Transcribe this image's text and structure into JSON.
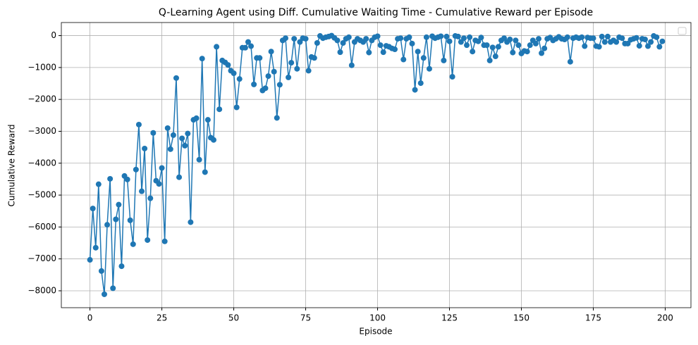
{
  "chart_data": {
    "type": "line",
    "title": "Q-Learning Agent using Diff. Cumulative Waiting Time - Cumulative Reward per Episode",
    "x_label": "Episode",
    "y_label": "Cumulative Reward",
    "x": [
      0,
      1,
      2,
      3,
      4,
      5,
      6,
      7,
      8,
      9,
      10,
      11,
      12,
      13,
      14,
      15,
      16,
      17,
      18,
      19,
      20,
      21,
      22,
      23,
      24,
      25,
      26,
      27,
      28,
      29,
      30,
      31,
      32,
      33,
      34,
      35,
      36,
      37,
      38,
      39,
      40,
      41,
      42,
      43,
      44,
      45,
      46,
      47,
      48,
      49,
      50,
      51,
      52,
      53,
      54,
      55,
      56,
      57,
      58,
      59,
      60,
      61,
      62,
      63,
      64,
      65,
      66,
      67,
      68,
      69,
      70,
      71,
      72,
      73,
      74,
      75,
      76,
      77,
      78,
      79,
      80,
      81,
      82,
      83,
      84,
      85,
      86,
      87,
      88,
      89,
      90,
      91,
      92,
      93,
      94,
      95,
      96,
      97,
      98,
      99,
      100,
      101,
      102,
      103,
      104,
      105,
      106,
      107,
      108,
      109,
      110,
      111,
      112,
      113,
      114,
      115,
      116,
      117,
      118,
      119,
      120,
      121,
      122,
      123,
      124,
      125,
      126,
      127,
      128,
      129,
      130,
      131,
      132,
      133,
      134,
      135,
      136,
      137,
      138,
      139,
      140,
      141,
      142,
      143,
      144,
      145,
      146,
      147,
      148,
      149,
      150,
      151,
      152,
      153,
      154,
      155,
      156,
      157,
      158,
      159,
      160,
      161,
      162,
      163,
      164,
      165,
      166,
      167,
      168,
      169,
      170,
      171,
      172,
      173,
      174,
      175,
      176,
      177,
      178,
      179,
      180,
      181,
      182,
      183,
      184,
      185,
      186,
      187,
      188,
      189,
      190,
      191,
      192,
      193,
      194,
      195,
      196,
      197,
      198,
      199
    ],
    "series": [
      {
        "color": "#1f77b4",
        "values": [
          -7030,
          -5420,
          -6650,
          -4660,
          -7380,
          -8110,
          -5930,
          -4490,
          -7920,
          -5760,
          -5300,
          -7230,
          -4400,
          -4510,
          -5790,
          -6540,
          -4200,
          -2790,
          -4880,
          -3540,
          -6410,
          -5100,
          -3050,
          -4550,
          -4650,
          -4150,
          -6450,
          -2900,
          -3560,
          -3120,
          -1330,
          -4440,
          -3220,
          -3450,
          -3070,
          -5850,
          -2640,
          -2590,
          -3890,
          -720,
          -4280,
          -2640,
          -3200,
          -3270,
          -350,
          -2310,
          -780,
          -840,
          -920,
          -1100,
          -1180,
          -2250,
          -1360,
          -380,
          -380,
          -200,
          -330,
          -1530,
          -700,
          -700,
          -1720,
          -1650,
          -1270,
          -500,
          -1130,
          -2580,
          -1540,
          -150,
          -80,
          -1310,
          -850,
          -100,
          -1040,
          -200,
          -80,
          -100,
          -1100,
          -670,
          -700,
          -230,
          -10,
          -80,
          -50,
          -30,
          0,
          -70,
          -150,
          -520,
          -230,
          -100,
          -50,
          -930,
          -200,
          -100,
          -150,
          -200,
          -100,
          -530,
          -150,
          -50,
          -20,
          -300,
          -520,
          -320,
          -350,
          -400,
          -430,
          -100,
          -80,
          -750,
          -100,
          -50,
          -250,
          -1700,
          -500,
          -1490,
          -700,
          -50,
          -1040,
          -20,
          -80,
          -50,
          -20,
          -780,
          -30,
          -180,
          -1290,
          -10,
          -30,
          -200,
          -80,
          -300,
          -50,
          -500,
          -150,
          -180,
          -60,
          -300,
          -300,
          -780,
          -370,
          -650,
          -350,
          -150,
          -80,
          -200,
          -120,
          -530,
          -150,
          -300,
          -560,
          -480,
          -500,
          -300,
          -150,
          -250,
          -100,
          -550,
          -400,
          -100,
          -60,
          -150,
          -100,
          -40,
          -100,
          -120,
          -50,
          -820,
          -80,
          -50,
          -80,
          -50,
          -330,
          -60,
          -80,
          -80,
          -330,
          -350,
          -30,
          -200,
          -30,
          -200,
          -150,
          -200,
          -50,
          -80,
          -250,
          -250,
          -130,
          -100,
          -70,
          -320,
          -100,
          -120,
          -330,
          -200,
          -10,
          -50,
          -350,
          -180
        ]
      }
    ],
    "xlim": [
      -9.95,
      208.95
    ],
    "ylim": [
      -8530,
      410
    ],
    "xticks": [
      0,
      25,
      50,
      75,
      100,
      125,
      150,
      175,
      200
    ],
    "yticks": [
      {
        "value": -8000,
        "label": "−8000"
      },
      {
        "value": -7000,
        "label": "−7000"
      },
      {
        "value": -6000,
        "label": "−6000"
      },
      {
        "value": -5000,
        "label": "−5000"
      },
      {
        "value": -4000,
        "label": "−4000"
      },
      {
        "value": -3000,
        "label": "−3000"
      },
      {
        "value": -2000,
        "label": "−2000"
      },
      {
        "value": -1000,
        "label": "−1000"
      },
      0
    ],
    "grid": true
  }
}
